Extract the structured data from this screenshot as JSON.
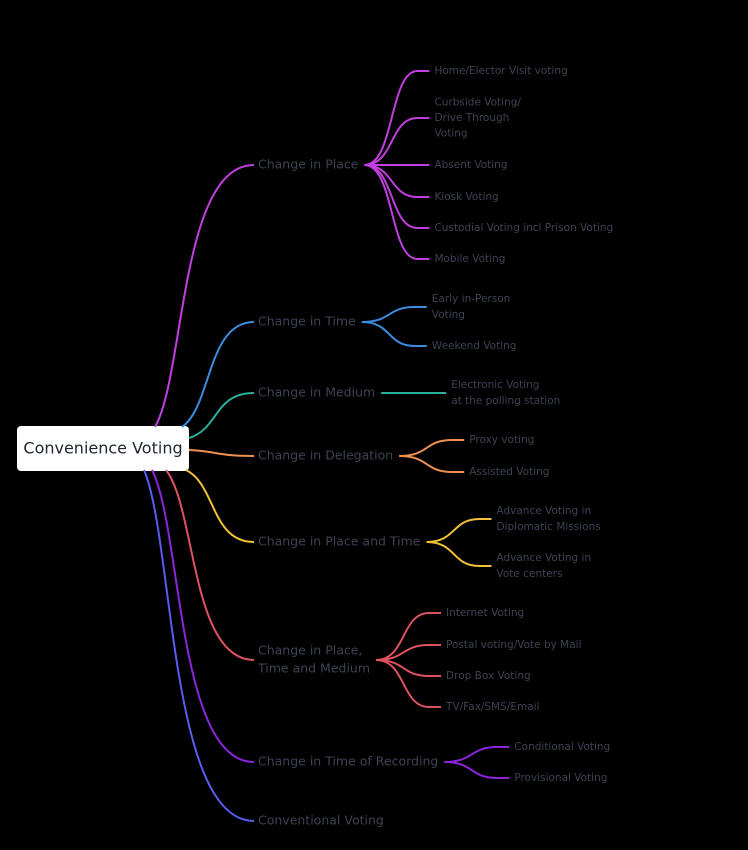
{
  "root": {
    "label": "Convenience Voting"
  },
  "branches": [
    {
      "label": [
        "Change in Place"
      ],
      "color": "#c23ee0",
      "children": [
        [
          "Home/Elector Visit voting"
        ],
        [
          "Curbside Voting/",
          "Drive Through",
          "Voting"
        ],
        [
          "Absent Voting"
        ],
        [
          "Kiosk Voting"
        ],
        [
          "Custodial Voting incl Prison Voting"
        ],
        [
          "Mobile Voting"
        ]
      ]
    },
    {
      "label": [
        "Change in Time"
      ],
      "color": "#3a8de0",
      "children": [
        [
          "Early in-Person",
          "Voting"
        ],
        [
          "Weekend Voting"
        ]
      ]
    },
    {
      "label": [
        "Change in Medium"
      ],
      "color": "#2aaf9c",
      "children": [
        [
          "Electronic Voting",
          "at the polling station"
        ]
      ]
    },
    {
      "label": [
        "Change in Delegation"
      ],
      "color": "#ee9050",
      "children": [
        [
          "Proxy voting"
        ],
        [
          "Assisted Voting"
        ]
      ]
    },
    {
      "label": [
        "Change in Place and Time"
      ],
      "color": "#f2c13a",
      "children": [
        [
          "Advance Voting in",
          "Diplomatic Missions"
        ],
        [
          "Advance Voting in",
          "Vote centers"
        ]
      ]
    },
    {
      "label": [
        "Change in Place,",
        "Time and Medium"
      ],
      "color": "#de5360",
      "children": [
        [
          "Internet Voting"
        ],
        [
          "Postal voting/Vote by Mail"
        ],
        [
          "Drop Box Voting"
        ],
        [
          "TV/Fax/SMS/Email"
        ]
      ]
    },
    {
      "label": [
        "Change in Time of Recording"
      ],
      "color": "#8a25dc",
      "children": [
        [
          "Conditional Voting"
        ],
        [
          "Provisional Voting"
        ]
      ]
    },
    {
      "label": [
        "Conventional Voting"
      ],
      "color": "#5a5cf0",
      "children": []
    }
  ]
}
